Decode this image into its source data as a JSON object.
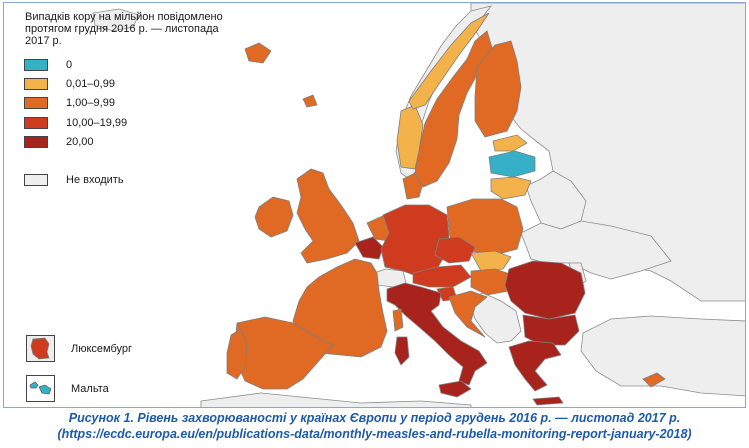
{
  "colors": {
    "c0": "#35b0c6",
    "c1": "#f4b24a",
    "c2": "#e06a24",
    "c3": "#cf3b1e",
    "c4": "#a8231c",
    "na": "#eeeeee",
    "sea": "#ffffff",
    "border": "#7f7f7f"
  },
  "legend": {
    "title": "Випадків кору на мільйон повідомлено протягом грудня 2016 р. — листопада 2017 р.",
    "items": [
      {
        "label": "0",
        "color": "#35b0c6",
        "icon": "swatch-zero"
      },
      {
        "label": "0,01–0,99",
        "color": "#f4b24a",
        "icon": "swatch-low"
      },
      {
        "label": "1,00–9,99",
        "color": "#e06a24",
        "icon": "swatch-medium"
      },
      {
        "label": "10,00–19,99",
        "color": "#cf3b1e",
        "icon": "swatch-high"
      },
      {
        "label": "20,00",
        "color": "#a8231c",
        "icon": "swatch-very-high"
      }
    ],
    "not_included": {
      "label": "Не входить",
      "color": "#eeeeee",
      "icon": "swatch-not-included"
    }
  },
  "insets": {
    "luxembourg": {
      "label": "Люксембург",
      "fill": "#cf3b1e",
      "icon": "luxembourg-inset-icon"
    },
    "malta": {
      "label": "Мальта",
      "fill": "#35b0c6",
      "icon": "malta-inset-icon"
    }
  },
  "caption": {
    "line1": "Рисунок 1. Рівень захворюваності у країнах Європи у період грудень 2016 р. — листопад 2017 р.",
    "line2": "(https://ecdc.europa.eu/en/publications-data/monthly-measles-and-rubella-monitoring-report-january-2018)"
  }
}
